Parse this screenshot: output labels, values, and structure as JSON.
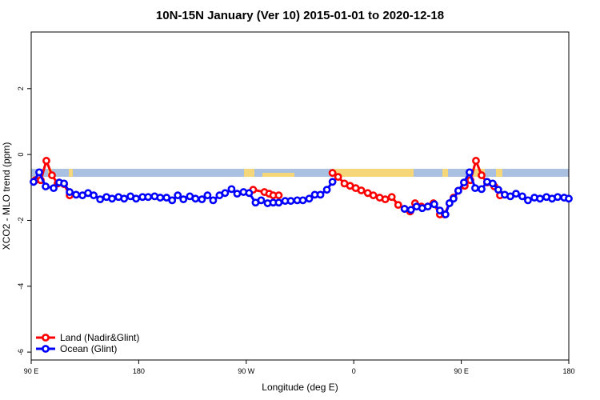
{
  "chart_data": {
    "type": "line",
    "title": "10N-15N January (Ver 10)   2015-01-01 to 2020-12-18",
    "x_label": "Longitude (deg E)",
    "y_label": "XCO2 - MLO trend (ppm)",
    "xlim": [
      90,
      540
    ],
    "xticks": [
      {
        "value": 90,
        "label": "90 E"
      },
      {
        "value": 180,
        "label": "180"
      },
      {
        "value": 270,
        "label": "90 W"
      },
      {
        "value": 360,
        "label": "0"
      },
      {
        "value": 450,
        "label": "90 E"
      },
      {
        "value": 540,
        "label": "180"
      }
    ],
    "ylim": [
      -6.24,
      3.72
    ],
    "yticks": [
      -6,
      -4,
      -2,
      0,
      2
    ],
    "legend": "bottom-left",
    "series": [
      {
        "name": "Land (Nadir&Glint)",
        "color": "#ff0000",
        "x": [
          93.4,
          98.0,
          102.7,
          107.4,
          112.1,
          117.5,
          122.2,
          null,
          275.8,
          285.2,
          289.2,
          292.6,
          297.2,
          null,
          342.2,
          346.9,
          352.2,
          356.9,
          361.6,
          366.3,
          371.7,
          376.4,
          381.7,
          386.4,
          391.8,
          397.2,
          402.5,
          407.2,
          411.3,
          416.6,
          422.0,
          426.7,
          432.1,
          436.1,
          440.1,
          443.5,
          447.5,
          452.9,
          457.6,
          462.3,
          467.0,
          471.6,
          477.7,
          482.4
        ],
        "values": [
          -0.78,
          -0.78,
          -0.19,
          -0.63,
          -0.88,
          -0.9,
          -1.24,
          null,
          -1.07,
          -1.14,
          -1.19,
          -1.24,
          -1.24,
          null,
          -0.56,
          -0.68,
          -0.88,
          -0.95,
          -1.02,
          -1.09,
          -1.17,
          -1.24,
          -1.31,
          -1.36,
          -1.29,
          -1.53,
          -1.65,
          -1.73,
          -1.48,
          -1.58,
          -1.58,
          -1.48,
          -1.82,
          -1.82,
          -1.48,
          -1.31,
          -1.1,
          -0.95,
          -0.78,
          -0.19,
          -0.63,
          -0.85,
          -0.97,
          -1.24
        ]
      },
      {
        "name": "Ocean (Glint)",
        "color": "#0000ff",
        "x": [
          92.0,
          96.7,
          102.1,
          108.8,
          113.5,
          117.5,
          122.2,
          127.6,
          132.9,
          137.6,
          142.3,
          147.7,
          153.0,
          157.7,
          163.1,
          167.8,
          173.1,
          177.8,
          183.2,
          187.9,
          193.3,
          198.0,
          203.3,
          208.0,
          212.7,
          217.4,
          222.8,
          227.5,
          232.9,
          237.6,
          242.3,
          247.6,
          252.3,
          257.7,
          262.4,
          267.7,
          272.4,
          277.8,
          282.5,
          287.9,
          292.6,
          297.2,
          302.6,
          307.3,
          312.7,
          317.4,
          322.7,
          327.4,
          332.1,
          337.5,
          342.2,
          null,
          402.5,
          407.9,
          412.6,
          417.3,
          422.0,
          427.4,
          432.1,
          436.8,
          440.1,
          443.5,
          447.5,
          452.2,
          456.9,
          461.6,
          467.0,
          471.6,
          476.3,
          481.0,
          486.4,
          491.1,
          495.8,
          501.1,
          505.8,
          511.2,
          515.9,
          521.3,
          526.0,
          530.7,
          536.1,
          540.0
        ],
        "values": [
          -0.83,
          -0.54,
          -0.97,
          -1.02,
          -0.85,
          -0.88,
          -1.14,
          -1.22,
          -1.24,
          -1.17,
          -1.24,
          -1.36,
          -1.29,
          -1.34,
          -1.29,
          -1.34,
          -1.27,
          -1.34,
          -1.29,
          -1.29,
          -1.27,
          -1.31,
          -1.31,
          -1.39,
          -1.24,
          -1.36,
          -1.27,
          -1.34,
          -1.36,
          -1.24,
          -1.39,
          -1.24,
          -1.17,
          -1.05,
          -1.19,
          -1.14,
          -1.17,
          -1.46,
          -1.39,
          -1.48,
          -1.46,
          -1.46,
          -1.41,
          -1.41,
          -1.39,
          -1.39,
          -1.34,
          -1.22,
          -1.22,
          -1.07,
          -0.83,
          null,
          -1.65,
          -1.68,
          -1.58,
          -1.63,
          -1.58,
          -1.51,
          -1.7,
          -1.82,
          -1.48,
          -1.34,
          -1.1,
          -0.85,
          -0.54,
          -1.02,
          -1.05,
          -0.83,
          -0.88,
          -1.07,
          -1.22,
          -1.27,
          -1.19,
          -1.27,
          -1.39,
          -1.31,
          -1.34,
          -1.29,
          -1.34,
          -1.29,
          -1.31,
          -1.34
        ]
      }
    ]
  }
}
